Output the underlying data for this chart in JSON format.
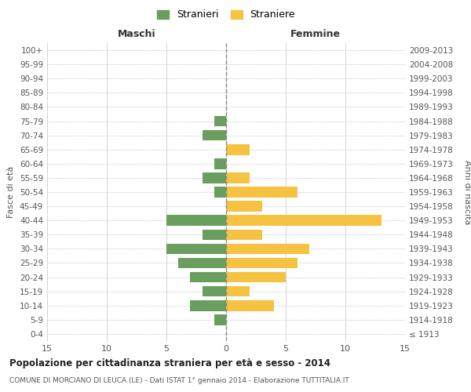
{
  "age_groups": [
    "100+",
    "95-99",
    "90-94",
    "85-89",
    "80-84",
    "75-79",
    "70-74",
    "65-69",
    "60-64",
    "55-59",
    "50-54",
    "45-49",
    "40-44",
    "35-39",
    "30-34",
    "25-29",
    "20-24",
    "15-19",
    "10-14",
    "5-9",
    "0-4"
  ],
  "birth_years": [
    "≤ 1913",
    "1914-1918",
    "1919-1923",
    "1924-1928",
    "1929-1933",
    "1934-1938",
    "1939-1943",
    "1944-1948",
    "1949-1953",
    "1954-1958",
    "1959-1963",
    "1964-1968",
    "1969-1973",
    "1974-1978",
    "1979-1983",
    "1984-1988",
    "1989-1993",
    "1994-1998",
    "1999-2003",
    "2004-2008",
    "2009-2013"
  ],
  "maschi": [
    0,
    0,
    0,
    0,
    0,
    1,
    2,
    0,
    1,
    2,
    1,
    0,
    5,
    2,
    5,
    4,
    3,
    2,
    3,
    1,
    0
  ],
  "femmine": [
    0,
    0,
    0,
    0,
    0,
    0,
    0,
    2,
    0,
    2,
    6,
    3,
    13,
    3,
    7,
    6,
    5,
    2,
    4,
    0,
    0
  ],
  "color_maschi": "#6a9e5f",
  "color_femmine": "#f5c242",
  "title": "Popolazione per cittadinanza straniera per età e sesso - 2014",
  "subtitle": "COMUNE DI MORCIANO DI LEUCA (LE) - Dati ISTAT 1° gennaio 2014 - Elaborazione TUTTITALIA.IT",
  "ylabel_left": "Fasce di età",
  "ylabel_right": "Anni di nascita",
  "xlabel_left": "Maschi",
  "xlabel_right": "Femmine",
  "legend_maschi": "Stranieri",
  "legend_femmine": "Straniere",
  "xlim": 15,
  "background_color": "#ffffff",
  "grid_color": "#cccccc"
}
